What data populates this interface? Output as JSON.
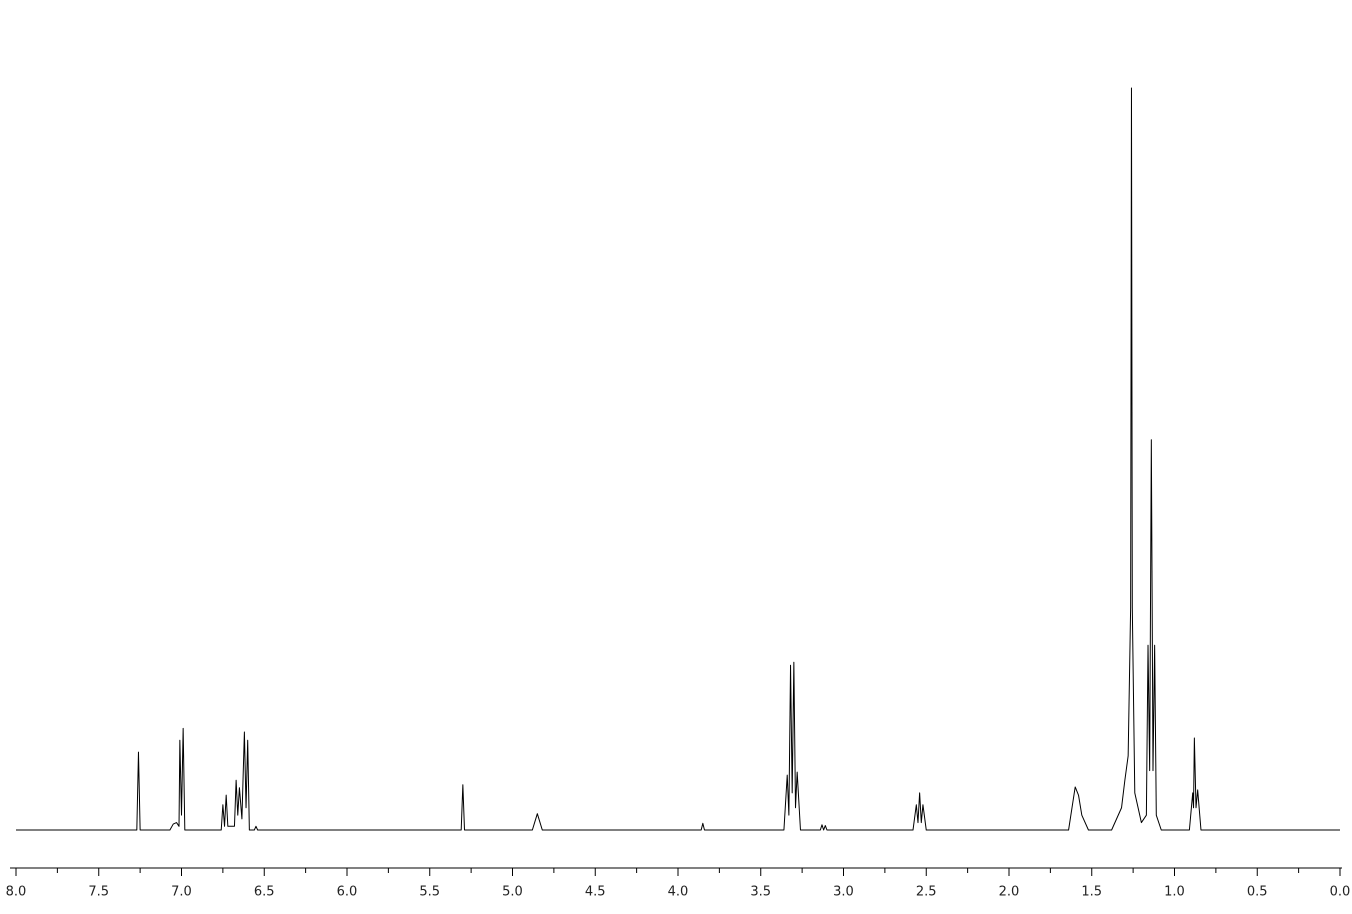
{
  "chart_data": {
    "type": "line",
    "x": [
      8.0,
      7.27,
      7.26,
      7.25,
      7.07,
      7.05,
      7.03,
      7.015,
      7.01,
      7.0,
      6.99,
      6.98,
      6.76,
      6.75,
      6.74,
      6.73,
      6.72,
      6.68,
      6.67,
      6.66,
      6.65,
      6.635,
      6.62,
      6.61,
      6.6,
      6.59,
      6.56,
      6.55,
      6.54,
      5.31,
      5.3,
      5.29,
      4.88,
      4.85,
      4.82,
      3.86,
      3.85,
      3.84,
      3.36,
      3.34,
      3.33,
      3.32,
      3.31,
      3.3,
      3.29,
      3.28,
      3.26,
      3.14,
      3.13,
      3.12,
      3.11,
      3.1,
      2.58,
      2.56,
      2.55,
      2.54,
      2.53,
      2.52,
      2.5,
      1.64,
      1.6,
      1.58,
      1.56,
      1.52,
      1.38,
      1.32,
      1.3,
      1.28,
      1.265,
      1.26,
      1.255,
      1.24,
      1.2,
      1.17,
      1.16,
      1.15,
      1.14,
      1.13,
      1.12,
      1.11,
      1.08,
      0.91,
      0.89,
      0.885,
      0.88,
      0.87,
      0.86,
      0.84,
      0.0
    ],
    "values": [
      0,
      0,
      10.5,
      0,
      0,
      0.8,
      1,
      0.5,
      12.1,
      2,
      13.7,
      0,
      0,
      3.4,
      0.5,
      4.7,
      0.5,
      0.5,
      6.7,
      2,
      5.7,
      1.5,
      13.2,
      3,
      12.1,
      0,
      0,
      0.5,
      0,
      0,
      6.1,
      0,
      0,
      2.2,
      0,
      0,
      0.9,
      0,
      0,
      7.4,
      2,
      22.2,
      5,
      22.6,
      3,
      7.8,
      0,
      0,
      0.7,
      0,
      0.6,
      0,
      0,
      3.4,
      1,
      5.0,
      1,
      3.4,
      0,
      0,
      5.8,
      4.7,
      2,
      0,
      0,
      3,
      6.7,
      10,
      30,
      100,
      30,
      5,
      1,
      2,
      24.9,
      8,
      52.6,
      8,
      24.9,
      2,
      0,
      0,
      5.0,
      3,
      12.4,
      3,
      5.4,
      0,
      0
    ],
    "color": "#000000",
    "xlim": [
      8.0,
      0.0
    ],
    "ylim": [
      0,
      100
    ],
    "xticks": [
      {
        "value": 8.0,
        "label": "8.0"
      },
      {
        "value": 7.5,
        "label": "7.5"
      },
      {
        "value": 7.0,
        "label": "7.0"
      },
      {
        "value": 6.5,
        "label": "6.5"
      },
      {
        "value": 6.0,
        "label": "6.0"
      },
      {
        "value": 5.5,
        "label": "5.5"
      },
      {
        "value": 5.0,
        "label": "5.0"
      },
      {
        "value": 4.5,
        "label": "4.5"
      },
      {
        "value": 4.0,
        "label": "4.0"
      },
      {
        "value": 3.5,
        "label": "3.5"
      },
      {
        "value": 3.0,
        "label": "3.0"
      },
      {
        "value": 2.5,
        "label": "2.5"
      },
      {
        "value": 2.0,
        "label": "2.0"
      },
      {
        "value": 1.5,
        "label": "1.5"
      },
      {
        "value": 1.0,
        "label": "1.0"
      },
      {
        "value": 0.5,
        "label": "0.5"
      },
      {
        "value": 0.0,
        "label": "0.0"
      }
    ],
    "xminorticks": [
      7.75,
      7.25,
      6.75,
      6.25,
      5.75,
      5.25,
      4.75,
      4.25,
      3.75,
      3.25,
      2.75,
      2.25,
      1.75,
      1.25,
      0.75,
      0.25
    ]
  }
}
